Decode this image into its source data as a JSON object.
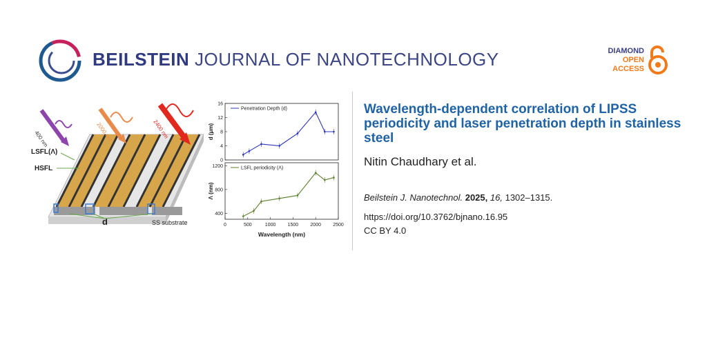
{
  "header": {
    "journal_bold": "BEILSTEIN",
    "journal_light": "JOURNAL OF NANOTECHNOLOGY",
    "oa_line1": "DIAMOND",
    "oa_line2": "OPEN",
    "oa_line3": "ACCESS"
  },
  "article": {
    "title": "Wavelength-dependent correlation of LIPSS periodicity and laser penetration depth in stainless steel",
    "authors": "Nitin Chaudhary et al.",
    "journal_abbrev": "Beilstein J. Nanotechnol.",
    "year": "2025,",
    "volume": "16,",
    "pages": "1302–1315.",
    "doi": "https://doi.org/10.3762/bjnano.16.95",
    "license": "CC BY 4.0"
  },
  "schematic": {
    "laser_labels": [
      "400 nm",
      "2000 nm",
      "2400 nm"
    ],
    "label_lsfl": "LSFL(Λ)",
    "label_hsfl": "HSFL",
    "label_d": "d",
    "label_substrate": "SS substrate",
    "colors": {
      "l400": "#8e44ad",
      "l2000": "#e88a4a",
      "l2400": "#e0281e"
    }
  },
  "chart_data": [
    {
      "type": "line",
      "legend": "Penetration Depth (d)",
      "ylabel": "d (μm)",
      "ylim": [
        0,
        16
      ],
      "yticks": [
        "0",
        "4",
        "8",
        "12",
        "16"
      ],
      "color": "#2b35b8",
      "x": [
        400,
        532,
        800,
        1200,
        1600,
        2000,
        2200,
        2400
      ],
      "y": [
        1.5,
        2.5,
        4.5,
        4.0,
        7.5,
        13.5,
        8.0,
        8.0
      ]
    },
    {
      "type": "line",
      "legend": "LSFL periodicity (Λ)",
      "ylabel": "Λ (nm)",
      "xlabel": "Wavelength (nm)",
      "xlim": [
        0,
        2500
      ],
      "ylim": [
        300,
        1250
      ],
      "xticks": [
        "0",
        "500",
        "1000",
        "1500",
        "2000",
        "2500"
      ],
      "yticks": [
        "400",
        "800",
        "1200"
      ],
      "color": "#5b7f2b",
      "x": [
        400,
        632,
        800,
        1200,
        1600,
        2000,
        2200,
        2400
      ],
      "y": [
        350,
        440,
        600,
        650,
        700,
        1080,
        960,
        1000
      ]
    }
  ]
}
